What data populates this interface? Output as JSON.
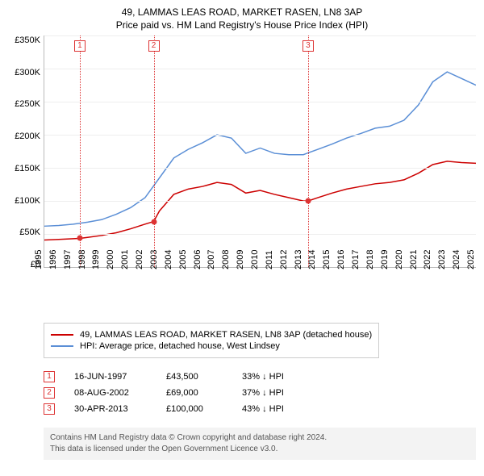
{
  "title": {
    "line1": "49, LAMMAS LEAS ROAD, MARKET RASEN, LN8 3AP",
    "line2": "Price paid vs. HM Land Registry's House Price Index (HPI)"
  },
  "chart": {
    "type": "line",
    "ylim": [
      0,
      350000
    ],
    "ytick_step": 50000,
    "yticks": [
      "£350K",
      "£300K",
      "£250K",
      "£200K",
      "£150K",
      "£100K",
      "£50K",
      "£0"
    ],
    "xlim": [
      1995,
      2025
    ],
    "xticks": [
      1995,
      1996,
      1997,
      1998,
      1999,
      2000,
      2001,
      2002,
      2003,
      2004,
      2005,
      2006,
      2007,
      2008,
      2009,
      2010,
      2011,
      2012,
      2013,
      2014,
      2015,
      2016,
      2017,
      2018,
      2019,
      2020,
      2021,
      2022,
      2023,
      2024,
      2025
    ],
    "grid_color": "#eeeeee",
    "background_color": "#ffffff",
    "series": {
      "property": {
        "color": "#cc0000",
        "line_width": 1.5,
        "label": "49, LAMMAS LEAS ROAD, MARKET RASEN, LN8 3AP (detached house)",
        "points": [
          [
            1995,
            41000
          ],
          [
            1996,
            42000
          ],
          [
            1997,
            43000
          ],
          [
            1997.46,
            43500
          ],
          [
            1998,
            45000
          ],
          [
            1999,
            48000
          ],
          [
            2000,
            52000
          ],
          [
            2001,
            58000
          ],
          [
            2002,
            65000
          ],
          [
            2002.6,
            69000
          ],
          [
            2003,
            85000
          ],
          [
            2004,
            110000
          ],
          [
            2005,
            118000
          ],
          [
            2006,
            122000
          ],
          [
            2007,
            128000
          ],
          [
            2008,
            125000
          ],
          [
            2009,
            112000
          ],
          [
            2010,
            116000
          ],
          [
            2011,
            110000
          ],
          [
            2012,
            105000
          ],
          [
            2013,
            100000
          ],
          [
            2013.33,
            100000
          ],
          [
            2014,
            105000
          ],
          [
            2015,
            112000
          ],
          [
            2016,
            118000
          ],
          [
            2017,
            122000
          ],
          [
            2018,
            126000
          ],
          [
            2019,
            128000
          ],
          [
            2020,
            132000
          ],
          [
            2021,
            142000
          ],
          [
            2022,
            155000
          ],
          [
            2023,
            160000
          ],
          [
            2024,
            158000
          ],
          [
            2025,
            157000
          ]
        ]
      },
      "hpi": {
        "color": "#5b8fd6",
        "line_width": 1.5,
        "label": "HPI: Average price, detached house, West Lindsey",
        "points": [
          [
            1995,
            62000
          ],
          [
            1996,
            63000
          ],
          [
            1997,
            65000
          ],
          [
            1998,
            68000
          ],
          [
            1999,
            72000
          ],
          [
            2000,
            80000
          ],
          [
            2001,
            90000
          ],
          [
            2002,
            105000
          ],
          [
            2003,
            135000
          ],
          [
            2004,
            165000
          ],
          [
            2005,
            178000
          ],
          [
            2006,
            188000
          ],
          [
            2007,
            200000
          ],
          [
            2008,
            195000
          ],
          [
            2009,
            172000
          ],
          [
            2010,
            180000
          ],
          [
            2011,
            172000
          ],
          [
            2012,
            170000
          ],
          [
            2013,
            170000
          ],
          [
            2014,
            178000
          ],
          [
            2015,
            186000
          ],
          [
            2016,
            195000
          ],
          [
            2017,
            202000
          ],
          [
            2018,
            210000
          ],
          [
            2019,
            213000
          ],
          [
            2020,
            222000
          ],
          [
            2021,
            245000
          ],
          [
            2022,
            280000
          ],
          [
            2023,
            295000
          ],
          [
            2024,
            285000
          ],
          [
            2025,
            275000
          ]
        ]
      }
    },
    "markers": [
      {
        "num": "1",
        "x": 1997.46,
        "y": 43500
      },
      {
        "num": "2",
        "x": 2002.6,
        "y": 69000
      },
      {
        "num": "3",
        "x": 2013.33,
        "y": 100000
      }
    ]
  },
  "transactions": [
    {
      "num": "1",
      "date": "16-JUN-1997",
      "price": "£43,500",
      "delta": "33% ↓ HPI"
    },
    {
      "num": "2",
      "date": "08-AUG-2002",
      "price": "£69,000",
      "delta": "37% ↓ HPI"
    },
    {
      "num": "3",
      "date": "30-APR-2013",
      "price": "£100,000",
      "delta": "43% ↓ HPI"
    }
  ],
  "footer": {
    "line1": "Contains HM Land Registry data © Crown copyright and database right 2024.",
    "line2": "This data is licensed under the Open Government Licence v3.0."
  }
}
